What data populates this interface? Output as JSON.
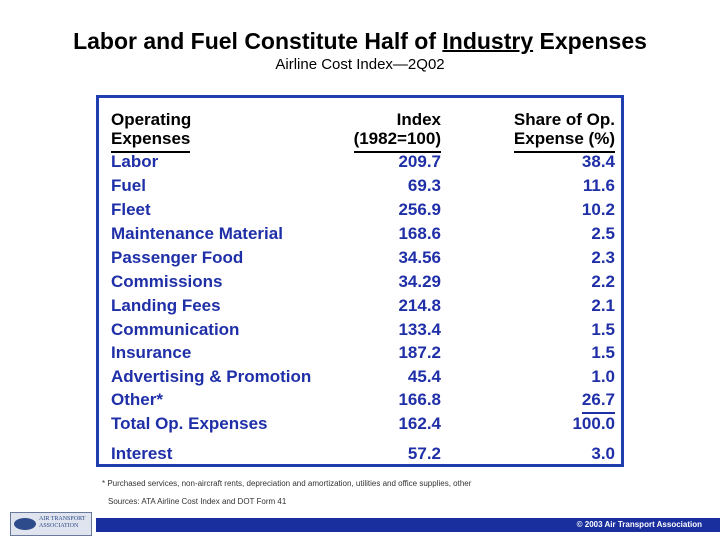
{
  "title": {
    "part1": "Labor and Fuel Constitute Half of ",
    "underlined": "Industry",
    "part2": " Expenses"
  },
  "subtitle": "Airline Cost Index—2Q02",
  "table": {
    "headers": {
      "col1_line1": "Operating",
      "col1_line2": "Expenses",
      "col2_line1": "Index",
      "col2_line2": "(1982=100)",
      "col3_line1": "Share of Op.",
      "col3_line2": "Expense (%)"
    },
    "rows": [
      {
        "name": "Labor",
        "index": "209.7",
        "share": "38.4"
      },
      {
        "name": "Fuel",
        "index": "69.3",
        "share": "11.6"
      },
      {
        "name": "Fleet",
        "index": "256.9",
        "share": "10.2"
      },
      {
        "name": "Maintenance Material",
        "index": "168.6",
        "share": "2.5"
      },
      {
        "name": "Passenger Food",
        "index": "34.56",
        "share": "2.3"
      },
      {
        "name": "Commissions",
        "index": "34.29",
        "share": "2.2"
      },
      {
        "name": "Landing Fees",
        "index": "214.8",
        "share": "2.1"
      },
      {
        "name": "Communication",
        "index": "133.4",
        "share": "1.5"
      },
      {
        "name": "Insurance",
        "index": "187.2",
        "share": "1.5"
      },
      {
        "name": "Advertising & Promotion",
        "index": "45.4",
        "share": "1.0"
      },
      {
        "name": "Other*",
        "index": "166.8",
        "share": "26.7"
      }
    ],
    "total": {
      "name": "Total Op. Expenses",
      "index": "162.4",
      "share": "100.0"
    },
    "interest": {
      "name": "Interest",
      "index": "57.2",
      "share": "3.0"
    }
  },
  "footnote": "* Purchased services, non-aircraft rents, depreciation and amortization, utilities and office supplies, other",
  "source": "Sources: ATA Airline Cost Index and DOT Form 41",
  "copyright": "© 2003 Air Transport Association",
  "logo": {
    "line1": "AIR TRANSPORT",
    "line2": "ASSOCIATION"
  },
  "colors": {
    "accent": "#1f2fa8",
    "bar": "#1a2f9e",
    "box_border": "#1f3fb0"
  }
}
